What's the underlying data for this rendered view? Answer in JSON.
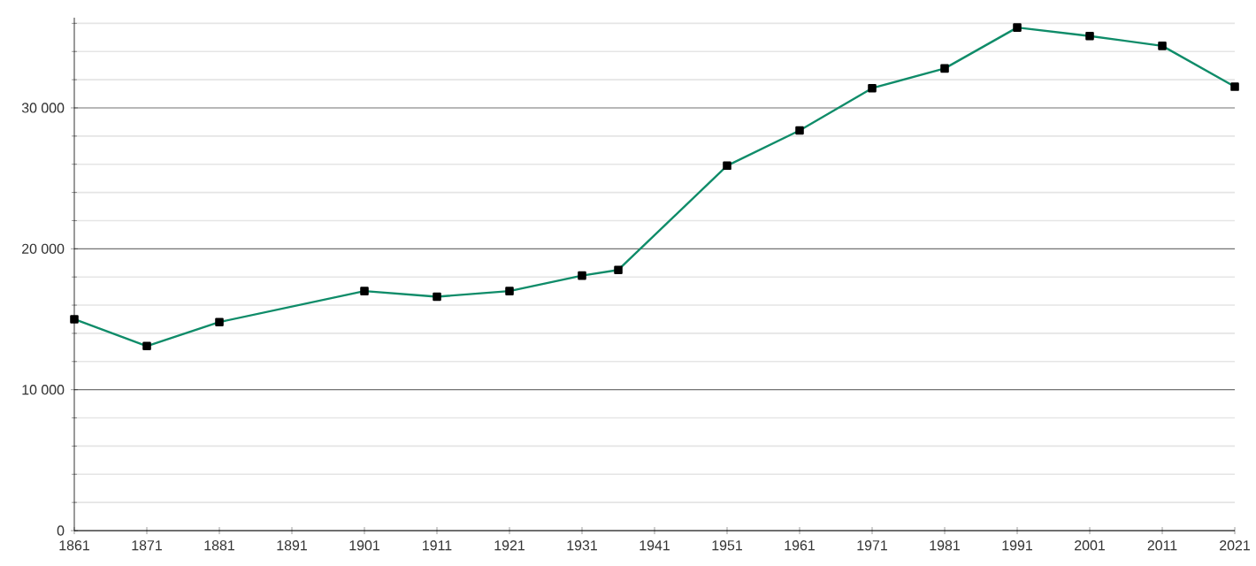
{
  "chart_data": {
    "type": "line",
    "x": [
      1861,
      1871,
      1881,
      1901,
      1911,
      1921,
      1931,
      1936,
      1951,
      1961,
      1971,
      1981,
      1991,
      2001,
      2011,
      2021
    ],
    "series": [
      {
        "color": "#0f8c69",
        "values": [
          15000,
          13100,
          14800,
          17000,
          16600,
          17000,
          18100,
          18500,
          25900,
          28400,
          31400,
          32800,
          35700,
          35100,
          34400,
          31500
        ]
      }
    ],
    "xlim": [
      1861,
      2021
    ],
    "xticks": [
      1861,
      1871,
      1881,
      1891,
      1901,
      1911,
      1921,
      1931,
      1941,
      1951,
      1961,
      1971,
      1981,
      1991,
      2001,
      2011,
      2021
    ],
    "ylim": [
      0,
      36400
    ],
    "yticks": [
      0,
      {
        "value": 2000,
        "label": null
      },
      {
        "value": 4000,
        "label": null
      },
      {
        "value": 6000,
        "label": null
      },
      {
        "value": 8000,
        "label": null
      },
      {
        "value": 10000,
        "label": "10 000"
      },
      {
        "value": 12000,
        "label": null
      },
      {
        "value": 14000,
        "label": null
      },
      {
        "value": 16000,
        "label": null
      },
      {
        "value": 18000,
        "label": null
      },
      {
        "value": 20000,
        "label": "20 000"
      },
      {
        "value": 22000,
        "label": null
      },
      {
        "value": 24000,
        "label": null
      },
      {
        "value": 26000,
        "label": null
      },
      {
        "value": 28000,
        "label": null
      },
      {
        "value": 30000,
        "label": "30 000"
      },
      {
        "value": 32000,
        "label": null
      },
      {
        "value": 34000,
        "label": null
      },
      {
        "value": 36000,
        "label": null
      }
    ],
    "grid": "y",
    "marker": "square",
    "line_style": "solid"
  }
}
